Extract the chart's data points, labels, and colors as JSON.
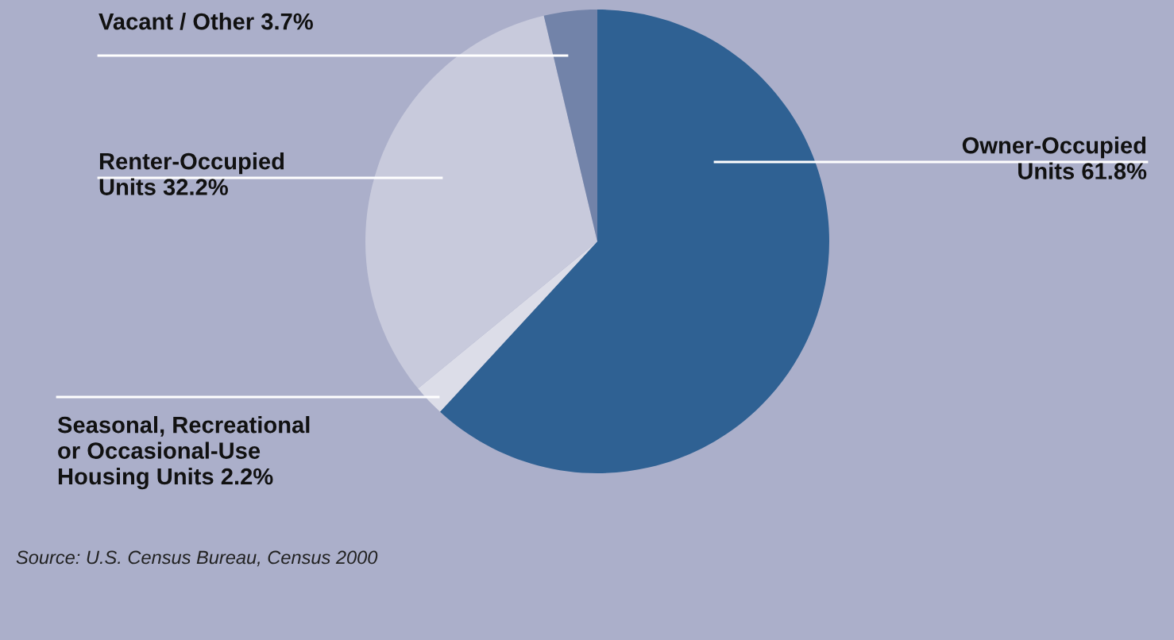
{
  "chart_data": {
    "type": "pie",
    "categories": [
      "Owner-Occupied\nUnits",
      "Seasonal, Recreational\nor Occasional-Use\nHousing Units",
      "Renter-Occupied\nUnits",
      "Vacant / Other"
    ],
    "values": [
      61.8,
      2.2,
      32.2,
      3.7
    ],
    "value_labels": [
      "61.8%",
      "2.2%",
      "32.2%",
      "3.7%"
    ],
    "colors": [
      "#2f6193",
      "#dcdde8",
      "#c8cadc",
      "#7283a9"
    ],
    "annotations": [
      "Source: U.S. Census Bureau, Census 2000"
    ],
    "legend": false
  }
}
